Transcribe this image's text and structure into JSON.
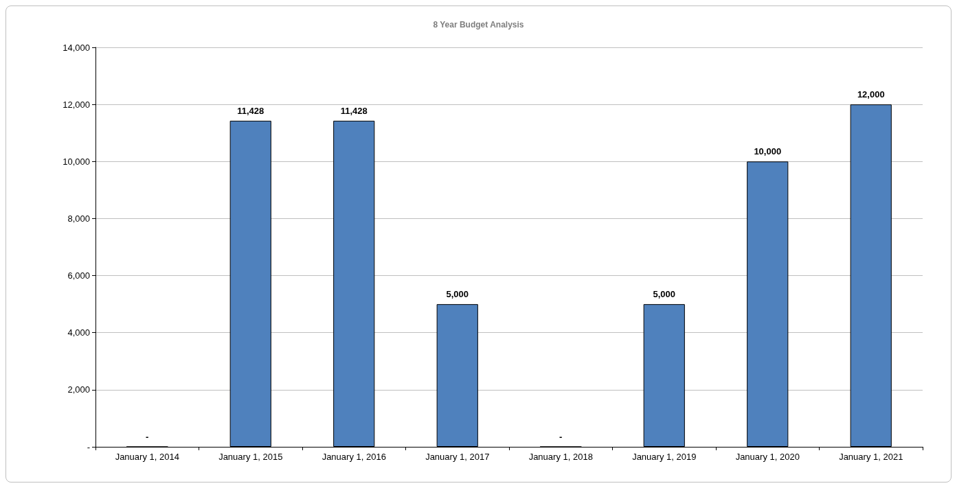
{
  "chart_data": {
    "type": "bar",
    "title": "8 Year Budget Analysis",
    "categories": [
      "January 1, 2014",
      "January 1, 2015",
      "January 1, 2016",
      "January 1, 2017",
      "January 1, 2018",
      "January 1, 2019",
      "January 1, 2020",
      "January 1, 2021"
    ],
    "values": [
      0,
      11428,
      11428,
      5000,
      0,
      5000,
      10000,
      12000
    ],
    "value_labels": [
      "-",
      "11,428",
      "11,428",
      "5,000",
      "-",
      "5,000",
      "10,000",
      "12,000"
    ],
    "color": "#4f81bd",
    "ylim": [
      0,
      14000
    ],
    "yticks": [
      {
        "value": 0,
        "label": "-"
      },
      {
        "value": 2000,
        "label": "2,000"
      },
      {
        "value": 4000,
        "label": "4,000"
      },
      {
        "value": 6000,
        "label": "6,000"
      },
      {
        "value": 8000,
        "label": "8,000"
      },
      {
        "value": 10000,
        "label": "10,000"
      },
      {
        "value": 12000,
        "label": "12,000"
      },
      {
        "value": 14000,
        "label": "14,000"
      }
    ],
    "grid": "y"
  }
}
